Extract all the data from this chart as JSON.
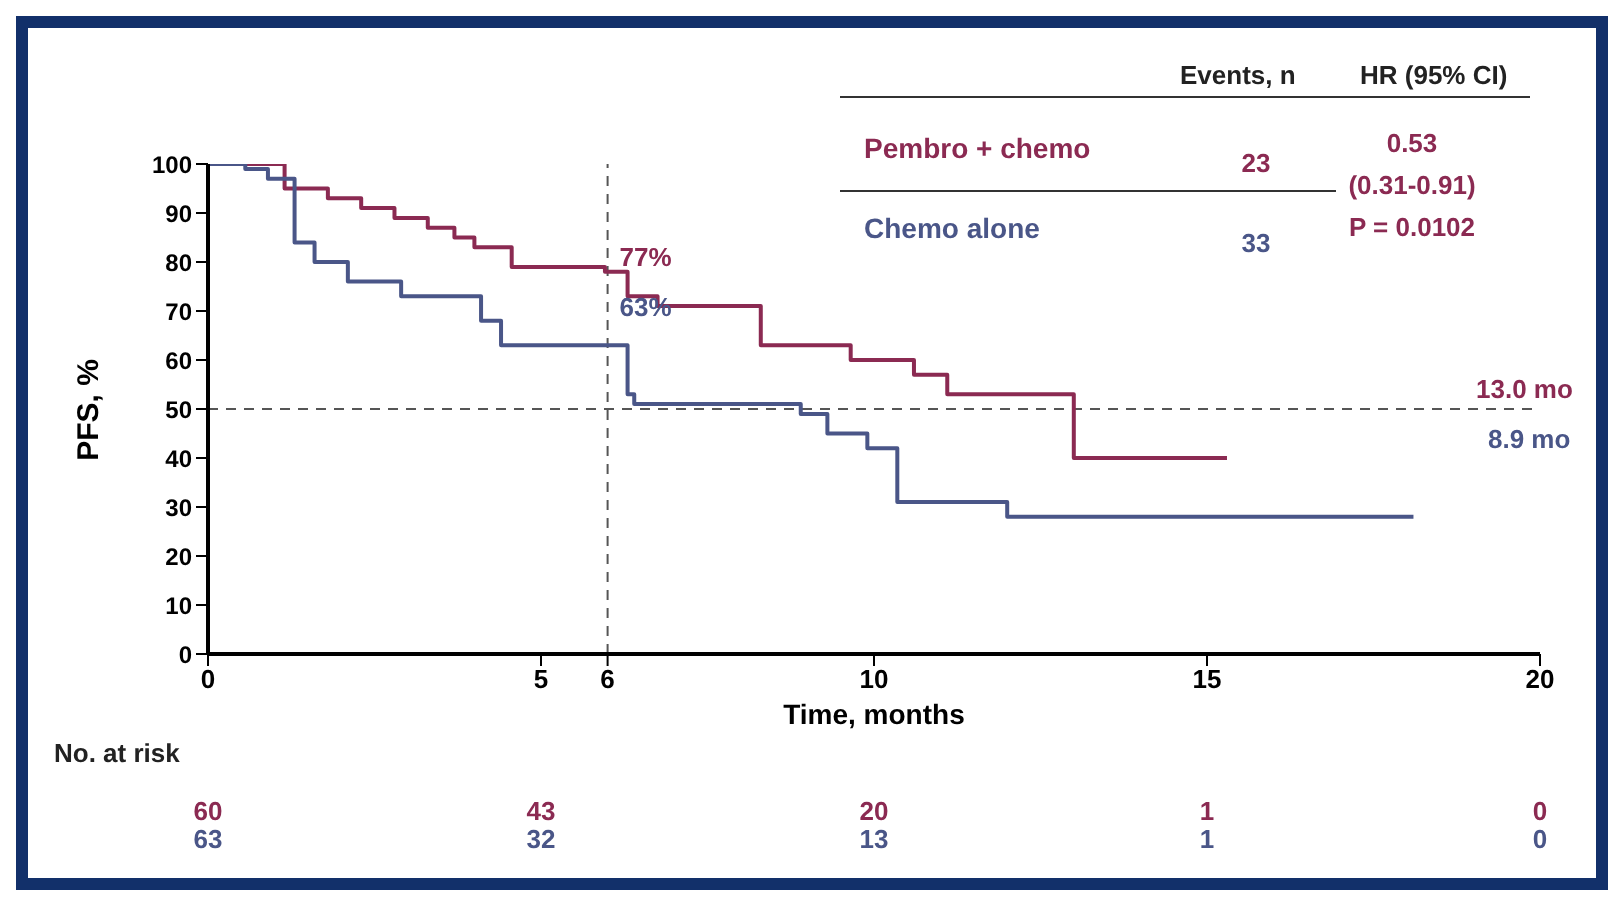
{
  "chart_data": {
    "type": "step",
    "xlabel": "Time, months",
    "ylabel": "PFS, %",
    "xlim": [
      0,
      20
    ],
    "xticks": [
      0,
      5,
      6,
      10,
      15,
      20
    ],
    "ylim": [
      0,
      100
    ],
    "yticks": [
      0,
      10,
      20,
      30,
      40,
      50,
      60,
      70,
      80,
      90,
      100
    ],
    "marker": "none",
    "series": [
      {
        "name": "Pembro + chemo",
        "color": "#8b2a52",
        "x": [
          0,
          1.15,
          1.8,
          2.3,
          2.8,
          3.3,
          3.7,
          4.0,
          4.56,
          5.96,
          6.3,
          6.75,
          8.3,
          9.65,
          10.6,
          11.1,
          13.0,
          15.3
        ],
        "values": [
          100,
          95,
          93,
          91,
          89,
          87,
          85,
          83,
          79,
          78,
          73,
          71,
          63,
          60,
          57,
          53,
          40,
          40
        ]
      },
      {
        "name": "Chemo alone",
        "color": "#4a5688",
        "x": [
          0,
          0.56,
          0.9,
          1.3,
          1.6,
          2.1,
          2.9,
          4.1,
          4.4,
          6.3,
          6.4,
          8.9,
          9.3,
          9.9,
          10.35,
          12.0,
          18.1
        ],
        "values": [
          100,
          99,
          97,
          84,
          80,
          76,
          73,
          68,
          63,
          53,
          51,
          49,
          45,
          42,
          31,
          28,
          28
        ]
      }
    ],
    "ref_lines": [
      {
        "axis": "y",
        "value": 50,
        "color": "#555555",
        "line_style": "dashed"
      },
      {
        "axis": "x",
        "value": 6,
        "color": "#555555",
        "line_style": "dashed"
      }
    ],
    "annotations": [
      "77%",
      "63%",
      "13.0 mo",
      "8.9 mo",
      "Events, n",
      "HR (95% CI)",
      "23",
      "0.53",
      "(0.31-0.91)",
      "P = 0.0102",
      "33",
      "No. at risk",
      "60",
      "43",
      "20",
      "1",
      "0",
      "63",
      "32",
      "13",
      "1",
      "0"
    ]
  }
}
